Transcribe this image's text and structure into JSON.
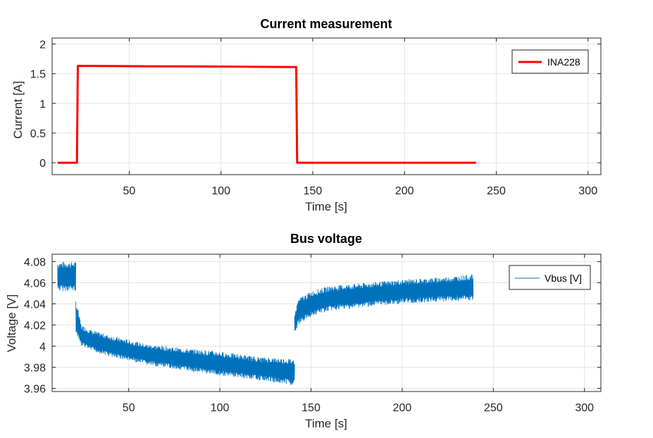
{
  "chart_data": [
    {
      "type": "line",
      "title": "Current measurement",
      "xlabel": "Time [s]",
      "ylabel": "Current [A]",
      "xlim": [
        8,
        307
      ],
      "ylim": [
        -0.2,
        2.1
      ],
      "xticks": [
        50,
        100,
        150,
        200,
        250,
        300
      ],
      "yticks": [
        0,
        0.5,
        1,
        1.5,
        2
      ],
      "xtick_labels": [
        "50",
        "100",
        "150",
        "200",
        "250",
        "300"
      ],
      "ytick_labels": [
        "0",
        "0.5",
        "1",
        "1.5",
        "2"
      ],
      "grid": true,
      "legend_position": "top-right",
      "series": [
        {
          "name": "INA228",
          "color": "#ff0000",
          "x": [
            11,
            21.5,
            22,
            30,
            60,
            100,
            140.5,
            141,
            141.5,
            239
          ],
          "y": [
            0,
            0,
            1.63,
            1.63,
            1.625,
            1.62,
            1.61,
            1.61,
            0,
            0
          ]
        }
      ]
    },
    {
      "type": "line",
      "title": "Bus voltage",
      "xlabel": "Time [s]",
      "ylabel": "Voltage [V]",
      "xlim": [
        8,
        309
      ],
      "ylim": [
        3.957,
        4.087
      ],
      "xticks": [
        50,
        100,
        150,
        200,
        250,
        300
      ],
      "yticks": [
        3.96,
        3.98,
        4,
        4.02,
        4.04,
        4.06,
        4.08
      ],
      "xtick_labels": [
        "50",
        "100",
        "150",
        "200",
        "250",
        "300"
      ],
      "ytick_labels": [
        "3.96",
        "3.98",
        "4",
        "4.02",
        "4.04",
        "4.06",
        "4.08"
      ],
      "grid": true,
      "legend_position": "top-right",
      "series": [
        {
          "name": "Vbus [V]",
          "color": "#0072bd",
          "segments": [
            {
              "x": [
                11,
                21
              ],
              "upper": [
                4.08,
                4.08
              ],
              "lower": [
                4.052,
                4.052
              ]
            },
            {
              "x": [
                21,
                24,
                30,
                40,
                60,
                80,
                100,
                120,
                141
              ],
              "upper": [
                4.045,
                4.02,
                4.015,
                4.01,
                4.002,
                3.998,
                3.995,
                3.99,
                3.988
              ],
              "lower": [
                4.01,
                4.0,
                3.995,
                3.99,
                3.982,
                3.977,
                3.972,
                3.968,
                3.963
              ]
            },
            {
              "x": [
                141,
                143,
                150,
                160,
                180,
                200,
                220,
                239
              ],
              "upper": [
                4.03,
                4.045,
                4.052,
                4.057,
                4.06,
                4.063,
                4.065,
                4.068
              ],
              "lower": [
                4.01,
                4.02,
                4.028,
                4.033,
                4.037,
                4.04,
                4.042,
                4.043
              ]
            }
          ]
        }
      ]
    }
  ]
}
